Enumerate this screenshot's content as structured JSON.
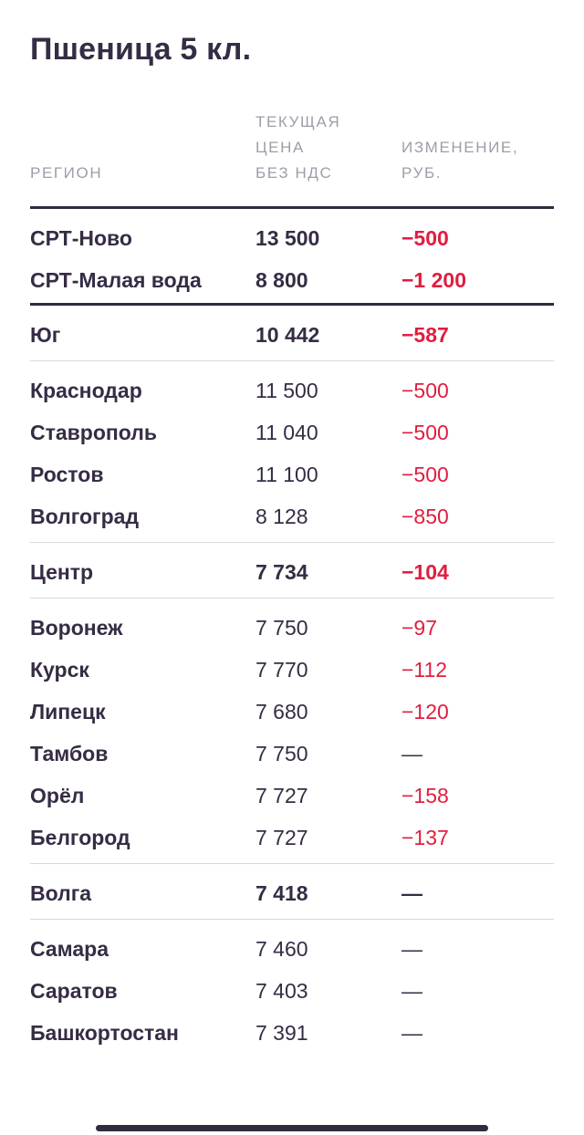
{
  "title": "Пшеница 5 кл.",
  "colors": {
    "text_dark": "#362C44",
    "accent_red": "#E11D3F",
    "header_gray": "#A29BA8",
    "divider_light": "#D8D6DB",
    "divider_dark": "#322A3E",
    "background": "#FFFFFF"
  },
  "table": {
    "columns": [
      {
        "id": "region",
        "label": "РЕГИОН"
      },
      {
        "id": "price",
        "label": "ТЕКУЩАЯ\nЦЕНА\nБЕЗ НДС"
      },
      {
        "id": "change",
        "label": "ИЗМЕНЕНИЕ,\nРУБ."
      }
    ],
    "sections": [
      {
        "divider": "thick",
        "first": true,
        "rows": [
          {
            "region": "СРТ-Ново",
            "price": "13 500",
            "change": "−500",
            "bold": true
          },
          {
            "region": "СРТ-Малая вода",
            "price": "8 800",
            "change": "−1 200",
            "bold": true
          }
        ]
      },
      {
        "divider": "thick",
        "rows": [
          {
            "region": "Юг",
            "price": "10 442",
            "change": "−587",
            "bold": true
          }
        ]
      },
      {
        "divider": "light",
        "rows": [
          {
            "region": "Краснодар",
            "price": "11 500",
            "change": "−500",
            "bold": false
          },
          {
            "region": "Ставрополь",
            "price": "11 040",
            "change": "−500",
            "bold": false
          },
          {
            "region": "Ростов",
            "price": "11 100",
            "change": "−500",
            "bold": false
          },
          {
            "region": "Волгоград",
            "price": "8 128",
            "change": "−850",
            "bold": false
          }
        ]
      },
      {
        "divider": "light",
        "rows": [
          {
            "region": "Центр",
            "price": "7 734",
            "change": "−104",
            "bold": true
          }
        ]
      },
      {
        "divider": "light",
        "rows": [
          {
            "region": "Воронеж",
            "price": "7 750",
            "change": "−97",
            "bold": false
          },
          {
            "region": "Курск",
            "price": "7 770",
            "change": "−112",
            "bold": false
          },
          {
            "region": "Липецк",
            "price": "7 680",
            "change": "−120",
            "bold": false
          },
          {
            "region": "Тамбов",
            "price": "7 750",
            "change": "—",
            "bold": false
          },
          {
            "region": "Орёл",
            "price": "7 727",
            "change": "−158",
            "bold": false
          },
          {
            "region": "Белгород",
            "price": "7 727",
            "change": "−137",
            "bold": false
          }
        ]
      },
      {
        "divider": "light",
        "rows": [
          {
            "region": "Волга",
            "price": "7 418",
            "change": "—",
            "bold": true
          }
        ]
      },
      {
        "divider": "light",
        "rows": [
          {
            "region": "Самара",
            "price": "7 460",
            "change": "—",
            "bold": false
          },
          {
            "region": "Саратов",
            "price": "7 403",
            "change": "—",
            "bold": false
          },
          {
            "region": "Башкортостан",
            "price": "7 391",
            "change": "—",
            "bold": false
          }
        ]
      }
    ]
  },
  "chart_data": {
    "type": "table",
    "title": "Пшеница 5 кл.",
    "columns": [
      "РЕГИОН",
      "ТЕКУЩАЯ ЦЕНА БЕЗ НДС",
      "ИЗМЕНЕНИЕ, РУБ."
    ],
    "rows": [
      [
        "СРТ-Ново",
        13500,
        -500
      ],
      [
        "СРТ-Малая вода",
        8800,
        -1200
      ],
      [
        "Юг",
        10442,
        -587
      ],
      [
        "Краснодар",
        11500,
        -500
      ],
      [
        "Ставрополь",
        11040,
        -500
      ],
      [
        "Ростов",
        11100,
        -500
      ],
      [
        "Волгоград",
        8128,
        -850
      ],
      [
        "Центр",
        7734,
        -104
      ],
      [
        "Воронеж",
        7750,
        -97
      ],
      [
        "Курск",
        7770,
        -112
      ],
      [
        "Липецк",
        7680,
        -120
      ],
      [
        "Тамбов",
        7750,
        null
      ],
      [
        "Орёл",
        7727,
        -158
      ],
      [
        "Белгород",
        7727,
        -137
      ],
      [
        "Волга",
        7418,
        null
      ],
      [
        "Самара",
        7460,
        null
      ],
      [
        "Саратов",
        7403,
        null
      ],
      [
        "Башкортостан",
        7391,
        null
      ]
    ],
    "notes": "null change is displayed as an em dash (no change); negative changes shown in red"
  }
}
